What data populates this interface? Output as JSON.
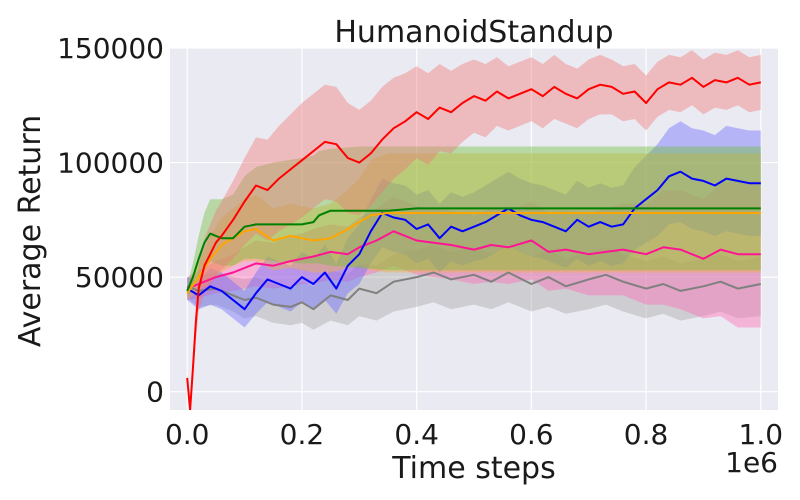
{
  "chart_data": {
    "type": "line",
    "title": "HumanoidStandup",
    "xlabel": "Time steps",
    "ylabel": "Average Return",
    "x_offset_label": "1e6",
    "xlim": [
      -0.03,
      1.03
    ],
    "ylim": [
      -8000,
      150000
    ],
    "xticks": [
      0.0,
      0.2,
      0.4,
      0.6,
      0.8,
      1.0
    ],
    "xtick_labels": [
      "0.0",
      "0.2",
      "0.4",
      "0.6",
      "0.8",
      "1.0"
    ],
    "yticks": [
      0,
      50000,
      100000,
      150000
    ],
    "ytick_labels": [
      "0",
      "50000",
      "100000",
      "150000"
    ],
    "grid": true,
    "series": [
      {
        "color": "#808080",
        "band_color": "#a8a8a8",
        "x": [
          0.0,
          0.02,
          0.05,
          0.08,
          0.1,
          0.12,
          0.15,
          0.18,
          0.2,
          0.22,
          0.25,
          0.28,
          0.3,
          0.33,
          0.36,
          0.4,
          0.43,
          0.46,
          0.5,
          0.53,
          0.56,
          0.6,
          0.63,
          0.66,
          0.7,
          0.73,
          0.76,
          0.8,
          0.83,
          0.86,
          0.9,
          0.93,
          0.96,
          1.0
        ],
        "y": [
          46000,
          44000,
          45000,
          42000,
          40000,
          41000,
          38000,
          37000,
          39000,
          36000,
          42000,
          40000,
          45000,
          43000,
          48000,
          50000,
          52000,
          49000,
          51000,
          48000,
          52000,
          47000,
          50000,
          46000,
          49000,
          51000,
          48000,
          45000,
          47000,
          44000,
          46000,
          48000,
          45000,
          47000
        ],
        "lower": [
          41000,
          37000,
          38000,
          35000,
          32000,
          33000,
          30000,
          29000,
          30000,
          27000,
          31000,
          29000,
          33000,
          31000,
          35000,
          37000,
          39000,
          36000,
          38000,
          36000,
          39000,
          35000,
          37000,
          34000,
          36000,
          38000,
          35000,
          32000,
          34000,
          31000,
          33000,
          35000,
          32000,
          33000
        ],
        "upper": [
          50000,
          51000,
          52000,
          50000,
          49000,
          50000,
          47000,
          46000,
          48000,
          46000,
          53000,
          51000,
          56000,
          55000,
          60000,
          62000,
          64000,
          61000,
          63000,
          60000,
          64000,
          59000,
          62000,
          58000,
          61000,
          63000,
          60000,
          57000,
          59000,
          56000,
          58000,
          60000,
          57000,
          59000
        ]
      },
      {
        "color": "#ff1493",
        "band_color": "#ff69b4",
        "x": [
          0.0,
          0.02,
          0.05,
          0.08,
          0.1,
          0.12,
          0.15,
          0.18,
          0.2,
          0.22,
          0.25,
          0.28,
          0.3,
          0.33,
          0.36,
          0.4,
          0.43,
          0.46,
          0.5,
          0.53,
          0.56,
          0.6,
          0.63,
          0.66,
          0.7,
          0.73,
          0.76,
          0.8,
          0.83,
          0.86,
          0.9,
          0.93,
          0.96,
          1.0
        ],
        "y": [
          45000,
          47000,
          50000,
          52000,
          54000,
          56000,
          55000,
          57000,
          58000,
          59000,
          61000,
          60000,
          63000,
          66000,
          70000,
          66000,
          65000,
          64000,
          62000,
          64000,
          63000,
          66000,
          61000,
          62000,
          60000,
          61000,
          62000,
          60000,
          63000,
          62000,
          58000,
          62000,
          60000,
          60000
        ],
        "lower": [
          40000,
          41000,
          43000,
          44000,
          45000,
          46000,
          45000,
          46000,
          47000,
          47000,
          49000,
          48000,
          50000,
          52000,
          55000,
          51000,
          50000,
          49000,
          47000,
          48000,
          47000,
          49000,
          44000,
          45000,
          42000,
          42000,
          42000,
          38000,
          38000,
          36000,
          32000,
          33000,
          28000,
          28000
        ],
        "upper": [
          50000,
          53000,
          57000,
          60000,
          63000,
          66000,
          65000,
          68000,
          69000,
          71000,
          73000,
          72000,
          76000,
          80000,
          85000,
          81000,
          80000,
          79000,
          77000,
          80000,
          79000,
          83000,
          78000,
          79000,
          78000,
          80000,
          82000,
          82000,
          88000,
          88000,
          84000,
          91000,
          92000,
          92000
        ]
      },
      {
        "color": "#0000ff",
        "band_color": "#6a6aff",
        "x": [
          0.0,
          0.02,
          0.04,
          0.06,
          0.08,
          0.1,
          0.12,
          0.14,
          0.16,
          0.18,
          0.2,
          0.22,
          0.24,
          0.26,
          0.28,
          0.3,
          0.32,
          0.34,
          0.36,
          0.38,
          0.4,
          0.42,
          0.44,
          0.46,
          0.48,
          0.5,
          0.52,
          0.54,
          0.56,
          0.58,
          0.6,
          0.62,
          0.64,
          0.66,
          0.68,
          0.7,
          0.72,
          0.74,
          0.76,
          0.78,
          0.8,
          0.82,
          0.84,
          0.86,
          0.88,
          0.9,
          0.92,
          0.94,
          0.96,
          0.98,
          1.0
        ],
        "y": [
          45000,
          42000,
          46000,
          44000,
          40000,
          36000,
          43000,
          49000,
          47000,
          45000,
          50000,
          47000,
          52000,
          45000,
          55000,
          60000,
          70000,
          78000,
          76000,
          75000,
          71000,
          73000,
          67000,
          72000,
          70000,
          72000,
          74000,
          77000,
          80000,
          77000,
          75000,
          74000,
          72000,
          70000,
          75000,
          72000,
          74000,
          72000,
          73000,
          80000,
          84000,
          88000,
          94000,
          96000,
          93000,
          92000,
          90000,
          93000,
          92000,
          91000,
          91000
        ],
        "lower": [
          40000,
          36000,
          38000,
          36000,
          32000,
          28000,
          34000,
          39000,
          37000,
          35000,
          39000,
          36000,
          40000,
          34000,
          43000,
          47000,
          56000,
          63000,
          61000,
          60000,
          56000,
          58000,
          52000,
          57000,
          55000,
          57000,
          58000,
          61000,
          64000,
          61000,
          59000,
          58000,
          56000,
          54000,
          58000,
          55000,
          57000,
          55000,
          56000,
          62000,
          65000,
          68000,
          73000,
          74000,
          71000,
          70000,
          68000,
          70000,
          69000,
          68000,
          68000
        ],
        "upper": [
          50000,
          48000,
          54000,
          52000,
          48000,
          44000,
          52000,
          59000,
          57000,
          55000,
          61000,
          58000,
          64000,
          56000,
          67000,
          73000,
          84000,
          93000,
          91000,
          90000,
          86000,
          88000,
          82000,
          87000,
          85000,
          87000,
          90000,
          93000,
          96000,
          93000,
          91000,
          90000,
          88000,
          86000,
          92000,
          89000,
          91000,
          89000,
          90000,
          98000,
          103000,
          108000,
          115000,
          118000,
          115000,
          114000,
          112000,
          116000,
          115000,
          114000,
          114000
        ]
      },
      {
        "color": "#ffa500",
        "band_color": "#f2b13c",
        "x": [
          0.0,
          0.02,
          0.04,
          0.06,
          0.08,
          0.1,
          0.12,
          0.15,
          0.18,
          0.2,
          0.22,
          0.25,
          0.28,
          0.3,
          0.32,
          0.35,
          0.4,
          0.45,
          0.5,
          0.6,
          0.7,
          0.8,
          0.9,
          1.0
        ],
        "y": [
          43000,
          50000,
          58000,
          64000,
          67000,
          70000,
          71000,
          66000,
          68000,
          67000,
          66000,
          67000,
          71000,
          74000,
          77000,
          78000,
          78000,
          78000,
          78000,
          78000,
          78000,
          78000,
          78000,
          78000
        ],
        "lower": [
          40000,
          44000,
          48000,
          52000,
          55000,
          57000,
          57000,
          53000,
          54000,
          53000,
          52000,
          52000,
          54000,
          55000,
          53000,
          52000,
          52000,
          52000,
          52000,
          52000,
          52000,
          52000,
          52000,
          52000
        ],
        "upper": [
          46000,
          56000,
          68000,
          76000,
          80000,
          84000,
          86000,
          80000,
          82000,
          81000,
          80000,
          82000,
          88000,
          93000,
          101000,
          104000,
          104000,
          104000,
          104000,
          104000,
          104000,
          104000,
          104000,
          104000
        ]
      },
      {
        "color": "#008000",
        "band_color": "#6fbf3a",
        "x": [
          0.0,
          0.01,
          0.02,
          0.03,
          0.04,
          0.05,
          0.06,
          0.08,
          0.1,
          0.12,
          0.15,
          0.2,
          0.22,
          0.23,
          0.25,
          0.3,
          0.35,
          0.4,
          0.5,
          0.6,
          0.7,
          0.8,
          0.9,
          1.0
        ],
        "y": [
          44000,
          50000,
          58000,
          65000,
          69000,
          68000,
          67000,
          67000,
          72000,
          73000,
          73000,
          73000,
          74000,
          77000,
          79000,
          79000,
          79000,
          80000,
          80000,
          80000,
          80000,
          80000,
          80000,
          80000
        ],
        "lower": [
          42000,
          45000,
          49000,
          54000,
          57000,
          56000,
          55000,
          55000,
          58000,
          58000,
          57000,
          56000,
          56000,
          56000,
          55000,
          54000,
          53000,
          53000,
          53000,
          53000,
          53000,
          53000,
          53000,
          53000
        ],
        "upper": [
          46000,
          56000,
          68000,
          78000,
          84000,
          84000,
          84000,
          86000,
          94000,
          98000,
          100000,
          102000,
          103000,
          105000,
          106000,
          107000,
          107000,
          107000,
          107000,
          107000,
          107000,
          107000,
          107000,
          107000
        ]
      },
      {
        "color": "#ff0000",
        "band_color": "#f07878",
        "x": [
          0.0,
          0.005,
          0.01,
          0.015,
          0.02,
          0.03,
          0.04,
          0.05,
          0.06,
          0.08,
          0.1,
          0.12,
          0.14,
          0.16,
          0.18,
          0.2,
          0.22,
          0.24,
          0.26,
          0.28,
          0.3,
          0.32,
          0.34,
          0.36,
          0.38,
          0.4,
          0.42,
          0.44,
          0.46,
          0.48,
          0.5,
          0.52,
          0.54,
          0.56,
          0.58,
          0.6,
          0.62,
          0.64,
          0.66,
          0.68,
          0.7,
          0.72,
          0.74,
          0.76,
          0.78,
          0.8,
          0.82,
          0.84,
          0.86,
          0.88,
          0.9,
          0.92,
          0.94,
          0.96,
          0.98,
          1.0
        ],
        "y": [
          6000,
          -8000,
          10000,
          30000,
          45000,
          55000,
          60000,
          65000,
          68000,
          75000,
          83000,
          90000,
          88000,
          93000,
          97000,
          101000,
          105000,
          109000,
          108000,
          102000,
          100000,
          104000,
          110000,
          115000,
          118000,
          122000,
          119000,
          124000,
          122000,
          126000,
          129000,
          127000,
          131000,
          128000,
          130000,
          132000,
          129000,
          133000,
          130000,
          128000,
          132000,
          134000,
          133000,
          130000,
          131000,
          126000,
          132000,
          135000,
          134000,
          137000,
          133000,
          136000,
          135000,
          137000,
          134000,
          135000
        ],
        "lower": [
          4000,
          -9000,
          5000,
          22000,
          35000,
          43000,
          47000,
          51000,
          53000,
          58000,
          64000,
          69000,
          66000,
          70000,
          73000,
          76000,
          80000,
          84000,
          83000,
          78000,
          77000,
          81000,
          87000,
          93000,
          97000,
          102000,
          99000,
          105000,
          104000,
          109000,
          113000,
          111000,
          116000,
          114000,
          116000,
          118000,
          115000,
          119000,
          117000,
          115000,
          119000,
          121000,
          121000,
          118000,
          119000,
          114000,
          120000,
          123000,
          122000,
          125000,
          121000,
          124000,
          123000,
          125000,
          122000,
          123000
        ],
        "upper": [
          8000,
          -7000,
          15000,
          38000,
          55000,
          67000,
          73000,
          79000,
          83000,
          92000,
          102000,
          111000,
          110000,
          116000,
          121000,
          126000,
          130000,
          134000,
          133000,
          126000,
          123000,
          127000,
          133000,
          137000,
          139000,
          142000,
          139000,
          143000,
          140000,
          143000,
          145000,
          143000,
          146000,
          142000,
          144000,
          146000,
          143000,
          147000,
          143000,
          141000,
          145000,
          147000,
          145000,
          142000,
          143000,
          138000,
          144000,
          147000,
          146000,
          149000,
          145000,
          148000,
          147000,
          149000,
          146000,
          147000
        ]
      }
    ]
  }
}
